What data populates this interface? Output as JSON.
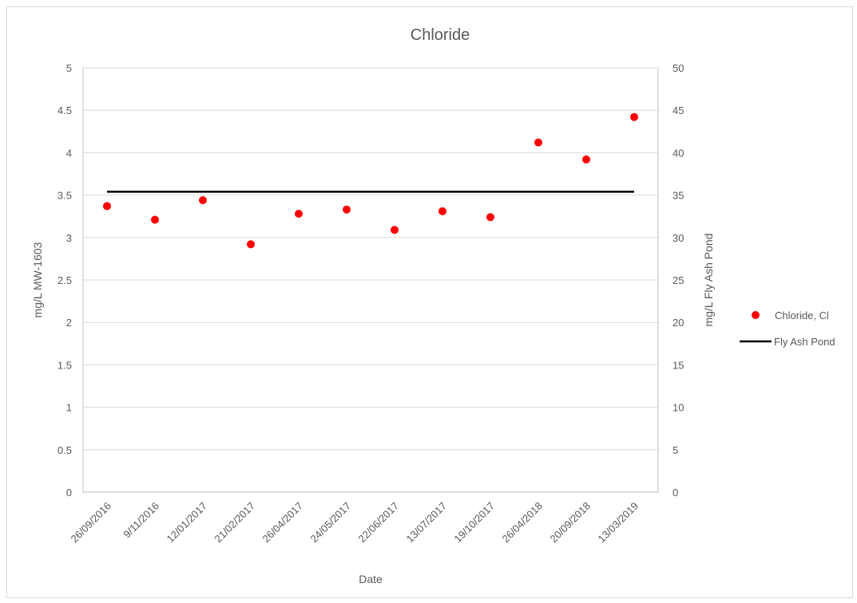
{
  "chart_data": {
    "type": "scatter",
    "title": "Chloride",
    "xlabel": "Date",
    "ylabel": "mg/L MW-1603",
    "y2label": "mg/L Fly Ash Pond",
    "categories": [
      "26/09/2016",
      "9/11/2016",
      "12/01/2017",
      "21/02/2017",
      "26/04/2017",
      "24/05/2017",
      "22/06/2017",
      "13/07/2017",
      "19/10/2017",
      "26/04/2018",
      "20/09/2018",
      "13/03/2019"
    ],
    "ylim": [
      0,
      5
    ],
    "y2lim": [
      0,
      50
    ],
    "yticks": [
      "0",
      "0.5",
      "1",
      "1.5",
      "2",
      "2.5",
      "3",
      "3.5",
      "4",
      "4.5",
      "5"
    ],
    "y2ticks": [
      "0",
      "5",
      "10",
      "15",
      "20",
      "25",
      "30",
      "35",
      "40",
      "45",
      "50"
    ],
    "grid": true,
    "legend_position": "right",
    "series": [
      {
        "name": "Chloride, Cl",
        "type": "scatter",
        "axis": "left",
        "color": "#ff0000",
        "values": [
          3.37,
          3.21,
          3.44,
          2.92,
          3.28,
          3.33,
          3.09,
          3.31,
          3.24,
          4.12,
          3.92,
          4.42
        ]
      },
      {
        "name": "Fly Ash Pond",
        "type": "line",
        "axis": "right",
        "color": "#000000",
        "values": [
          35.4,
          35.4,
          35.4,
          35.4,
          35.4,
          35.4,
          35.4,
          35.4,
          35.4,
          35.4,
          35.4,
          35.4
        ]
      }
    ]
  }
}
